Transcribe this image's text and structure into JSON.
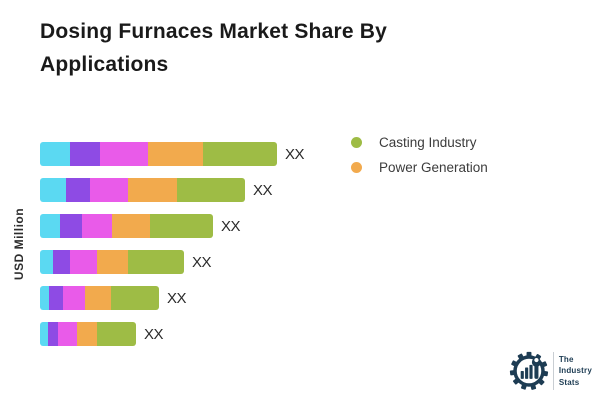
{
  "title": "Dosing Furnaces Market Share By Applications",
  "y_axis_label": "USD Million",
  "legend": [
    {
      "label": "Casting Industry",
      "color": "#9ebc45"
    },
    {
      "label": "Power Generation",
      "color": "#f2aa4d"
    }
  ],
  "chart_data": {
    "type": "bar",
    "orientation": "horizontal",
    "stacked": true,
    "title": "Dosing Furnaces Market Share By Applications",
    "ylabel": "USD Million",
    "xlabel": "",
    "grid": false,
    "legend_position": "upper right, outside plot",
    "categories": [
      "",
      "",
      "",
      "",
      "",
      ""
    ],
    "displayed_value_label": "XX",
    "bar_value_labels": [
      "XX",
      "XX",
      "XX",
      "XX",
      "XX",
      "XX"
    ],
    "values_unit": "relative segment widths in px (numeric values masked as XX on chart)",
    "series": [
      {
        "name": "",
        "color": "#5bd9f2",
        "values": [
          30,
          26,
          20,
          13,
          9,
          8
        ]
      },
      {
        "name": "",
        "color": "#8e4be4",
        "values": [
          30,
          24,
          22,
          17,
          14,
          10
        ]
      },
      {
        "name": "",
        "color": "#e95be9",
        "values": [
          48,
          38,
          30,
          27,
          22,
          19
        ]
      },
      {
        "name": "Power Generation",
        "color": "#f2aa4d",
        "values": [
          55,
          49,
          38,
          31,
          26,
          20
        ]
      },
      {
        "name": "Casting Industry",
        "color": "#9ebc45",
        "values": [
          74,
          68,
          63,
          56,
          48,
          39
        ]
      }
    ]
  },
  "logo": {
    "line1": "The",
    "line2": "Industry",
    "line3": "Stats",
    "color": "#1d3c53"
  }
}
